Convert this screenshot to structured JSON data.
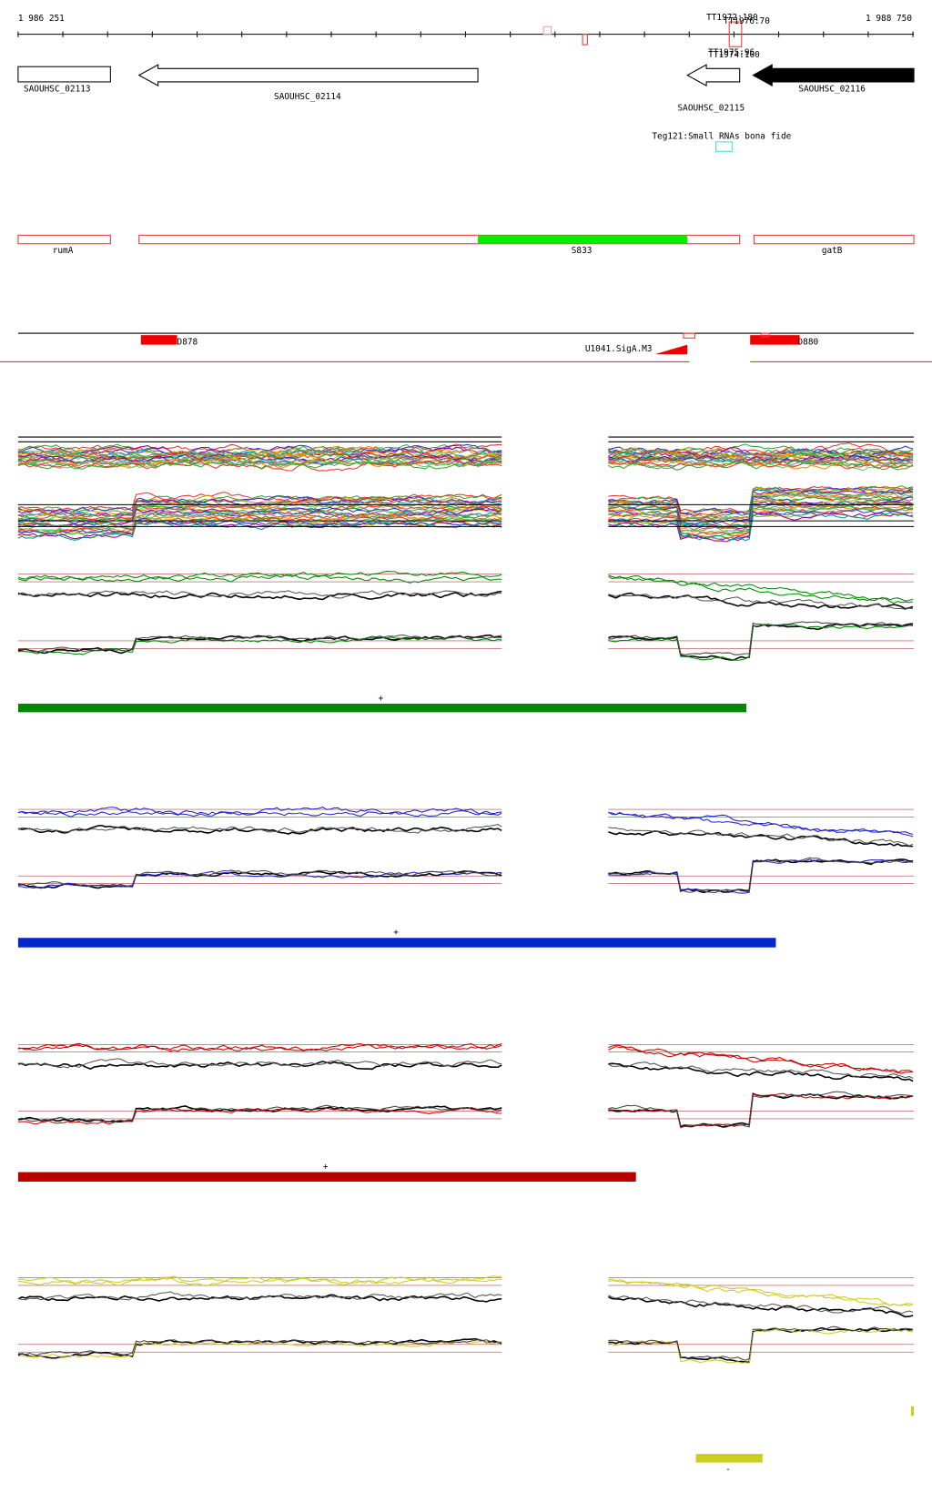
{
  "header": {
    "start": "1 986 251",
    "end": "1 988 750"
  },
  "transcripts": [
    "TT1972:180",
    "TT1976:70",
    "TT1975:96",
    "TT1974:100"
  ],
  "genes": [
    {
      "label": "SAOUHSC_02113"
    },
    {
      "label": "SAOUHSC_02114"
    },
    {
      "label": "SAOUHSC_02115"
    },
    {
      "label": "SAOUHSC_02116"
    }
  ],
  "srna": {
    "label": "Teg121:Small RNAs bona fide"
  },
  "segments": [
    {
      "label": "rumA"
    },
    {
      "label": "S833"
    },
    {
      "label": "gatB"
    }
  ],
  "regulatory": [
    {
      "label": "D878"
    },
    {
      "label": "U1041.SigA.M3"
    },
    {
      "label": "D880"
    }
  ],
  "strands": [
    "+",
    "+",
    "+",
    "-"
  ]
}
